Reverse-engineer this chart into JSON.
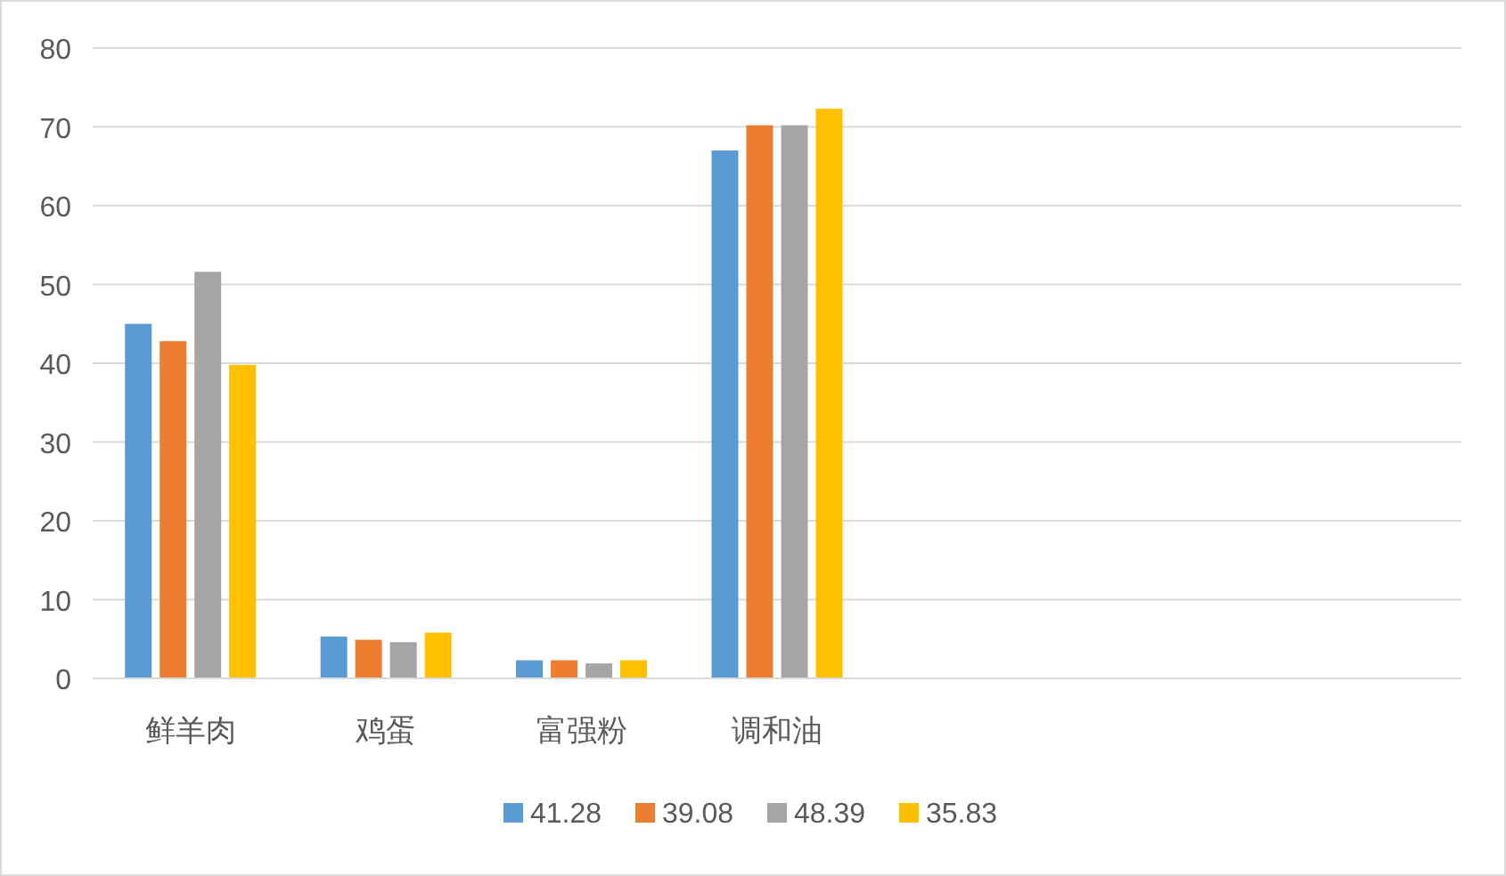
{
  "chart_data": {
    "type": "bar",
    "categories": [
      "鲜羊肉",
      "鸡蛋",
      "富强粉",
      "调和油",
      null,
      null,
      null
    ],
    "series": [
      {
        "name": "41.28",
        "color": "#5b9bd5",
        "values": [
          45.0,
          5.3,
          2.3,
          67.0,
          null,
          null,
          null
        ]
      },
      {
        "name": "39.08",
        "color": "#ed7d31",
        "values": [
          42.8,
          4.9,
          2.3,
          70.2,
          null,
          null,
          null
        ]
      },
      {
        "name": "48.39",
        "color": "#a5a5a5",
        "values": [
          51.6,
          4.6,
          1.9,
          70.2,
          null,
          null,
          null
        ]
      },
      {
        "name": "35.83",
        "color": "#ffc000",
        "values": [
          39.8,
          5.8,
          2.3,
          72.3,
          null,
          null,
          null
        ]
      }
    ],
    "ylim": [
      0,
      80
    ],
    "yticks": [
      0,
      10,
      20,
      30,
      40,
      50,
      60,
      70,
      80
    ],
    "grid": "y",
    "legend": "bottom"
  }
}
